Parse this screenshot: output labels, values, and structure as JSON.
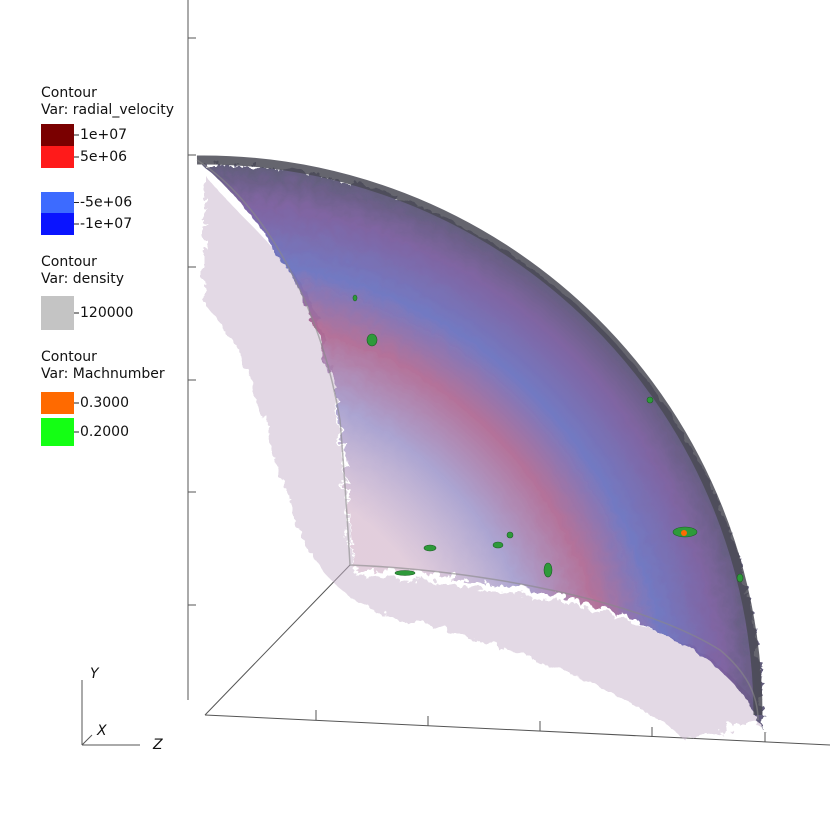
{
  "legends": [
    {
      "title": "Contour",
      "variable": "Var: radial_velocity",
      "entries": [
        {
          "label": "1e+07",
          "color": "#7a0000"
        },
        {
          "label": "5e+06",
          "color": "#ff1a1a"
        },
        {
          "label": "-5e+06",
          "color": "#3d6bff"
        },
        {
          "label": "-1e+07",
          "color": "#0a14ff"
        }
      ]
    },
    {
      "title": "Contour",
      "variable": "Var: density",
      "entries": [
        {
          "label": "120000",
          "color": "#c4c4c4"
        }
      ]
    },
    {
      "title": "Contour",
      "variable": "Var: Machnumber",
      "entries": [
        {
          "label": "0.3000",
          "color": "#ff6a00"
        },
        {
          "label": "0.2000",
          "color": "#14ff14"
        }
      ]
    }
  ],
  "axes_triad": {
    "y": "Y",
    "x": "X",
    "z": "Z"
  }
}
